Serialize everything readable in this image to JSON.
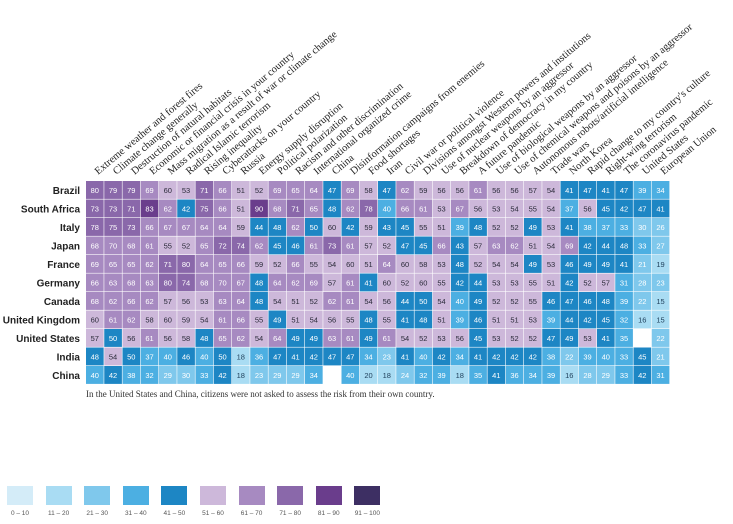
{
  "chart_data": {
    "type": "heatmap",
    "columns": [
      "Extreme weather and forest fires",
      "Climate change generally",
      "Destruction of natural habitats",
      "Economic or financial crisis in your country",
      "Mass migration as a result of war or climate change",
      "Radical Islamic terrorism",
      "Rising inequality",
      "Cyberattacks on your country",
      "Russia",
      "Energy supply disruption",
      "Political polarization",
      "Racism and other discrimination",
      "International organized crime",
      "China",
      "Disinformation campaigns from enemies",
      "Food shortages",
      "Iran",
      "Civil war or political violence",
      "Divisions amongst Western powers and institutions",
      "Use of nuclear weapons by an aggressor",
      "Breakdown of democracy in my country",
      "A future pandemic",
      "Use of biological weapons by an aggressor",
      "Use of chemical weapons and poisons by an aggressor",
      "Autonomous robots/artificial intelligence",
      "Trade wars",
      "North Korea",
      "Rapid change to my country's culture",
      "Right-wing terrorism",
      "The coronavirus pandemic",
      "United States",
      "European Union"
    ],
    "rows": [
      "Brazil",
      "South Africa",
      "Italy",
      "Japan",
      "France",
      "Germany",
      "Canada",
      "United Kingdom",
      "United States",
      "India",
      "China"
    ],
    "values": [
      [
        80,
        79,
        79,
        69,
        60,
        53,
        71,
        66,
        51,
        52,
        69,
        65,
        64,
        47,
        69,
        58,
        47,
        62,
        59,
        56,
        56,
        61,
        56,
        56,
        57,
        54,
        41,
        47,
        41,
        47,
        39,
        34
      ],
      [
        73,
        73,
        71,
        83,
        62,
        42,
        75,
        66,
        51,
        90,
        68,
        71,
        65,
        48,
        62,
        78,
        40,
        66,
        61,
        53,
        67,
        56,
        53,
        54,
        55,
        54,
        37,
        56,
        45,
        42,
        47,
        41
      ],
      [
        78,
        75,
        73,
        66,
        67,
        67,
        64,
        64,
        59,
        44,
        48,
        62,
        50,
        60,
        42,
        59,
        43,
        45,
        55,
        51,
        39,
        48,
        52,
        52,
        49,
        53,
        41,
        38,
        37,
        33,
        30,
        26
      ],
      [
        68,
        70,
        68,
        61,
        55,
        52,
        65,
        72,
        74,
        62,
        45,
        46,
        61,
        73,
        61,
        57,
        52,
        47,
        45,
        66,
        43,
        57,
        63,
        62,
        51,
        54,
        69,
        42,
        44,
        48,
        33,
        27
      ],
      [
        69,
        65,
        65,
        62,
        71,
        80,
        64,
        65,
        66,
        59,
        52,
        66,
        55,
        54,
        60,
        51,
        64,
        60,
        58,
        53,
        48,
        52,
        54,
        54,
        49,
        53,
        46,
        49,
        49,
        41,
        21,
        19
      ],
      [
        66,
        63,
        68,
        63,
        80,
        74,
        68,
        70,
        67,
        48,
        64,
        62,
        69,
        57,
        61,
        41,
        60,
        52,
        60,
        55,
        42,
        44,
        53,
        53,
        55,
        51,
        42,
        52,
        57,
        31,
        28,
        23
      ],
      [
        68,
        62,
        66,
        62,
        57,
        56,
        53,
        63,
        64,
        48,
        54,
        51,
        52,
        62,
        61,
        54,
        56,
        44,
        50,
        54,
        40,
        49,
        52,
        52,
        55,
        46,
        47,
        46,
        48,
        39,
        22,
        15
      ],
      [
        60,
        61,
        62,
        58,
        60,
        59,
        54,
        61,
        66,
        55,
        49,
        51,
        54,
        56,
        55,
        48,
        55,
        41,
        48,
        51,
        39,
        46,
        51,
        51,
        53,
        39,
        44,
        42,
        45,
        32,
        16,
        15
      ],
      [
        57,
        50,
        56,
        61,
        56,
        58,
        48,
        65,
        62,
        54,
        64,
        49,
        49,
        63,
        61,
        49,
        61,
        54,
        52,
        53,
        56,
        45,
        53,
        52,
        52,
        47,
        49,
        53,
        41,
        35,
        null,
        22
      ],
      [
        48,
        54,
        50,
        37,
        40,
        46,
        40,
        50,
        18,
        36,
        47,
        41,
        42,
        47,
        47,
        34,
        23,
        41,
        40,
        42,
        34,
        41,
        42,
        42,
        42,
        38,
        22,
        39,
        40,
        33,
        45,
        21
      ],
      [
        40,
        42,
        38,
        32,
        29,
        30,
        33,
        42,
        18,
        23,
        29,
        29,
        34,
        null,
        40,
        20,
        18,
        24,
        32,
        39,
        18,
        35,
        41,
        36,
        34,
        39,
        16,
        28,
        29,
        33,
        42,
        31
      ]
    ],
    "note": "In the United States and China, citizens were not asked to assess the risk from their own country.",
    "legend": [
      {
        "label": "0 – 10",
        "color": "#d4ecf8"
      },
      {
        "label": "11 – 20",
        "color": "#a9dcf3"
      },
      {
        "label": "21 – 30",
        "color": "#7fc8ec"
      },
      {
        "label": "31 – 40",
        "color": "#4cafe2"
      },
      {
        "label": "41 – 50",
        "color": "#1d86c4"
      },
      {
        "label": "51 – 60",
        "color": "#cdb8da"
      },
      {
        "label": "61 – 70",
        "color": "#a78ac1"
      },
      {
        "label": "71 – 80",
        "color": "#8a68aa"
      },
      {
        "label": "81 – 90",
        "color": "#6a3d8c"
      },
      {
        "label": "91 – 100",
        "color": "#3d2f63"
      }
    ]
  }
}
